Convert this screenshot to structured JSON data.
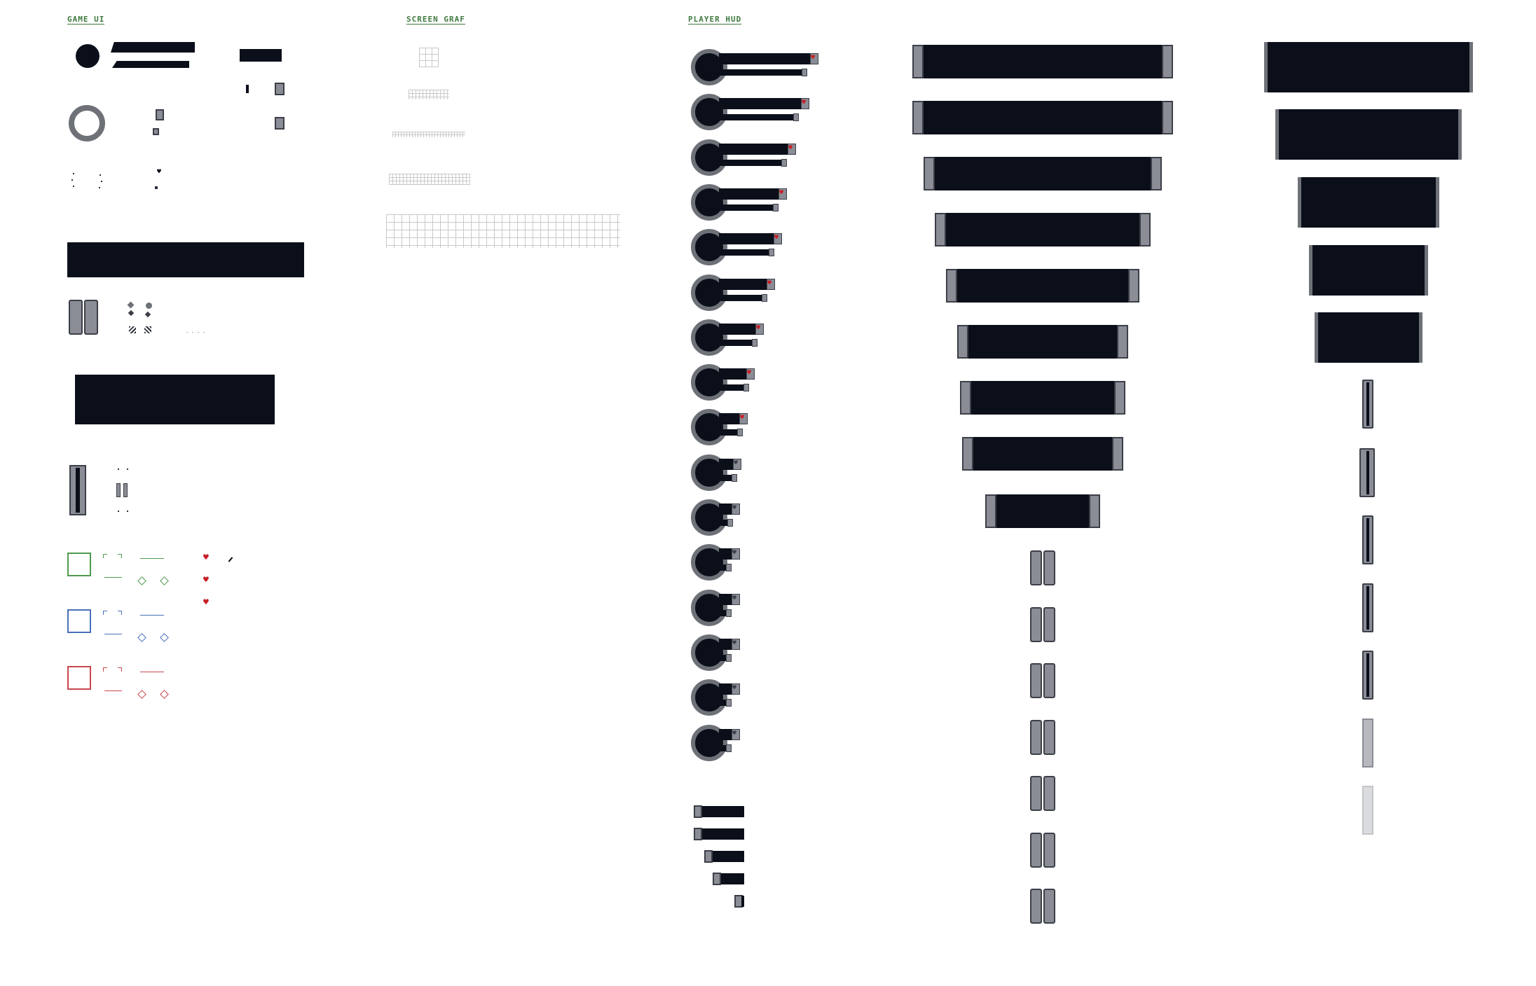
{
  "sections": {
    "game_ui": "GAME UI",
    "screen_graf": "SCREEN GRAF",
    "player_hud": "PLAYER HUD"
  },
  "colors": {
    "panel": "#0b0f1a",
    "metal": "#8a8d95",
    "metal_dark": "#3c3f47",
    "heart": "#c81d25",
    "frame_green": "#4f9a4f",
    "frame_blue": "#4a6fb8",
    "frame_red": "#c8474f",
    "title_green": "#3f7a3f"
  },
  "icons": [
    "heart-icon",
    "circle-gauge-icon",
    "grid-icon",
    "console-frame-icon"
  ],
  "hud_bar_fill_levels": [
    1.0,
    0.9,
    0.75,
    0.65,
    0.6,
    0.52,
    0.4,
    0.3,
    0.22,
    0.15,
    0.1,
    0.08,
    0.08,
    0.08,
    0.08,
    0.08
  ],
  "hearts_count": 3
}
